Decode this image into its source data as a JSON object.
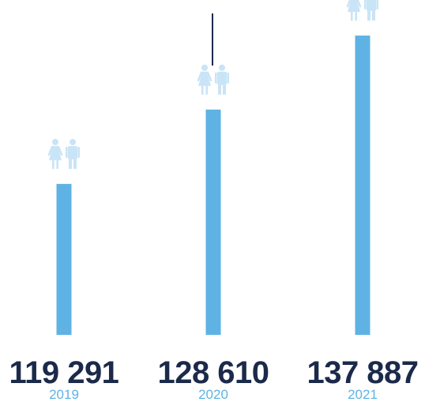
{
  "chart_data": {
    "type": "bar",
    "categories": [
      "2019",
      "2020",
      "2021"
    ],
    "values": [
      119291,
      128610,
      137887
    ],
    "value_labels": [
      "119 291",
      "128 610",
      "137 887"
    ],
    "title": "",
    "xlabel": "",
    "ylabel": "",
    "grid": false,
    "legend": "none",
    "icons": [
      "female-person-icon",
      "male-person-icon"
    ]
  },
  "colors": {
    "bar": "#5eb3e4",
    "icon": "#c9e4f6",
    "value_text": "#1b2a4a",
    "year_text": "#5eb3e4",
    "marker_line": "#1b2a4a"
  }
}
